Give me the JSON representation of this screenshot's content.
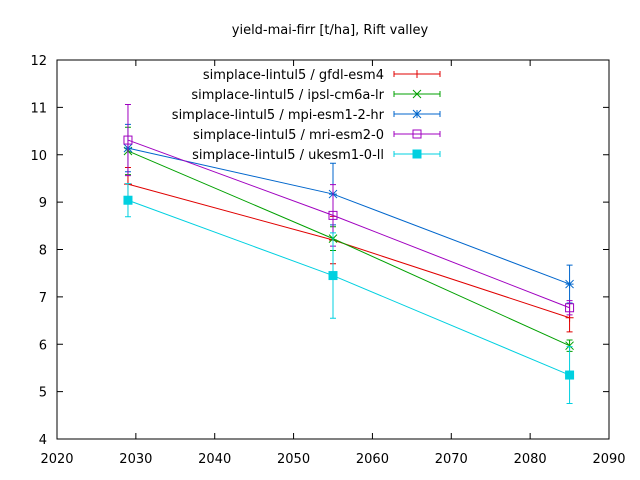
{
  "chart_data": {
    "type": "line",
    "title": "yield-mai-firr [t/ha], Rift valley",
    "xlabel": "",
    "ylabel": "",
    "xlim": [
      2020,
      2090
    ],
    "ylim": [
      4,
      12
    ],
    "xticks": [
      2020,
      2030,
      2040,
      2050,
      2060,
      2070,
      2080,
      2090
    ],
    "yticks": [
      4,
      5,
      6,
      7,
      8,
      9,
      10,
      11,
      12
    ],
    "grid": false,
    "legend_position": "top-right",
    "series": [
      {
        "name": "simplace-lintul5 / gfdl-esm4",
        "color": "#e00000",
        "marker": "plus",
        "x": [
          2029,
          2055,
          2085
        ],
        "y": [
          9.38,
          8.2,
          6.56
        ],
        "err": [
          0.35,
          0.5,
          0.3
        ]
      },
      {
        "name": "simplace-lintul5 / ipsl-cm6a-lr",
        "color": "#00a000",
        "marker": "cross",
        "x": [
          2029,
          2055,
          2085
        ],
        "y": [
          10.08,
          8.23,
          5.97
        ],
        "err": [
          0.5,
          0.25,
          0.12
        ]
      },
      {
        "name": "simplace-lintul5 / mpi-esm1-2-hr",
        "color": "#0066cc",
        "marker": "star",
        "x": [
          2029,
          2055,
          2085
        ],
        "y": [
          10.14,
          9.17,
          7.27
        ],
        "err": [
          0.5,
          0.65,
          0.4
        ]
      },
      {
        "name": "simplace-lintul5 / mri-esm2-0",
        "color": "#a000c0",
        "marker": "square-open",
        "x": [
          2029,
          2055,
          2085
        ],
        "y": [
          10.31,
          8.72,
          6.77
        ],
        "err": [
          0.75,
          0.65,
          0.15
        ]
      },
      {
        "name": "simplace-lintul5 / ukesm1-0-ll",
        "color": "#00d0e0",
        "marker": "square-filled",
        "x": [
          2029,
          2055,
          2085
        ],
        "y": [
          9.04,
          7.45,
          5.35
        ],
        "err": [
          0.35,
          0.9,
          0.6
        ]
      }
    ]
  }
}
